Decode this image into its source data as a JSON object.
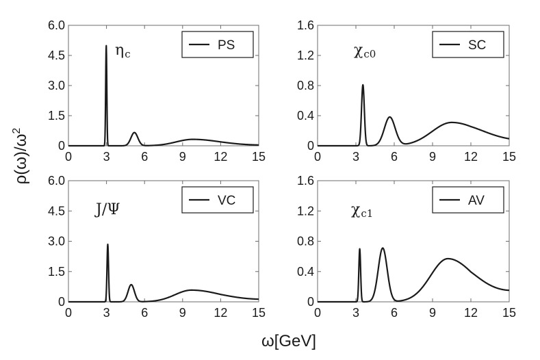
{
  "figure": {
    "ylabel_main": "ρ(ω)/ω",
    "ylabel_sup": "2",
    "xlabel": "ω[GeV]"
  },
  "chart_data": [
    {
      "type": "line",
      "legend": "PS",
      "particle": {
        "main": "η",
        "sub": "c"
      },
      "xlim": [
        0,
        15
      ],
      "ylim": [
        0,
        6
      ],
      "xticks": [
        0,
        3,
        6,
        9,
        12,
        15
      ],
      "xtick_labels": [
        "0",
        "3",
        "6",
        "9",
        "12",
        "15"
      ],
      "yticks": [
        0,
        1.5,
        3,
        4.5,
        6
      ],
      "ytick_labels": [
        "0",
        "1.5",
        "3.0",
        "4.5",
        "6.0"
      ],
      "legend_position": "top-right",
      "peaks": [
        {
          "center": 2.98,
          "height": 5.0,
          "width": 0.045
        },
        {
          "center": 5.2,
          "height": 0.66,
          "width": 0.27
        },
        {
          "center": 9.8,
          "height": 0.32,
          "width_left": 1.3,
          "width_right": 2.2
        }
      ],
      "tail": {
        "x0": 12,
        "value_at_15": 0.02
      }
    },
    {
      "type": "line",
      "legend": "SC",
      "particle": {
        "main": "χ",
        "sub": "c0"
      },
      "xlim": [
        0,
        15
      ],
      "ylim": [
        0,
        1.6
      ],
      "xticks": [
        0,
        3,
        6,
        9,
        12,
        15
      ],
      "xtick_labels": [
        "0",
        "3",
        "6",
        "9",
        "12",
        "15"
      ],
      "yticks": [
        0,
        0.4,
        0.8,
        1.2,
        1.6
      ],
      "ytick_labels": [
        "0",
        "0.4",
        "0.8",
        "1.2",
        "1.6"
      ],
      "legend_position": "top-right",
      "peaks": [
        {
          "center": 3.55,
          "height": 0.81,
          "width": 0.11
        },
        {
          "center": 5.65,
          "height": 0.38,
          "width": 0.42
        },
        {
          "center": 10.5,
          "height": 0.31,
          "width_left": 1.55,
          "width_right": 2.4
        }
      ],
      "tail": {
        "x0": 12,
        "value_at_15": 0.04
      }
    },
    {
      "type": "line",
      "legend": "VC",
      "particle": {
        "main": "J/Ψ",
        "sub": ""
      },
      "xlim": [
        0,
        15
      ],
      "ylim": [
        0,
        6
      ],
      "xticks": [
        0,
        3,
        6,
        9,
        12,
        15
      ],
      "xtick_labels": [
        "0",
        "3",
        "6",
        "9",
        "12",
        "15"
      ],
      "yticks": [
        0,
        1.5,
        3,
        4.5,
        6
      ],
      "ytick_labels": [
        "0",
        "1.5",
        "3.0",
        "4.5",
        "6.0"
      ],
      "legend_position": "top-right",
      "peaks": [
        {
          "center": 3.1,
          "height": 2.85,
          "width": 0.06
        },
        {
          "center": 4.95,
          "height": 0.85,
          "width": 0.25
        },
        {
          "center": 9.7,
          "height": 0.58,
          "width_left": 1.3,
          "width_right": 2.4
        }
      ],
      "tail": {
        "x0": 12,
        "value_at_15": 0.08
      }
    },
    {
      "type": "line",
      "legend": "AV",
      "particle": {
        "main": "χ",
        "sub": "c1"
      },
      "xlim": [
        0,
        15
      ],
      "ylim": [
        0,
        1.6
      ],
      "xticks": [
        0,
        3,
        6,
        9,
        12,
        15
      ],
      "xtick_labels": [
        "0",
        "3",
        "6",
        "9",
        "12",
        "15"
      ],
      "yticks": [
        0,
        0.4,
        0.8,
        1.2,
        1.6
      ],
      "ytick_labels": [
        "0",
        "0.4",
        "0.8",
        "1.2",
        "1.6"
      ],
      "legend_position": "top-right",
      "peaks": [
        {
          "center": 3.3,
          "height": 0.7,
          "width": 0.07
        },
        {
          "center": 5.1,
          "height": 0.71,
          "width": 0.35
        },
        {
          "center": 10.2,
          "height": 0.57,
          "width_left": 1.35,
          "width_right": 2.1
        }
      ],
      "tail": {
        "x0": 12,
        "value_at_15": 0.11
      }
    }
  ]
}
